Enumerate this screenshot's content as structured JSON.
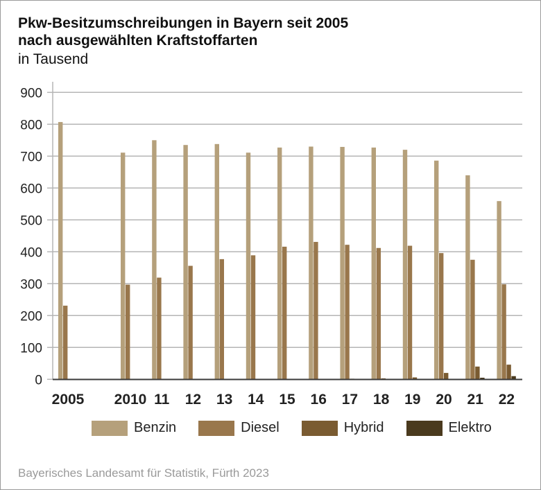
{
  "chart_data": {
    "type": "bar",
    "title": "Pkw-Besitzumschreibungen in Bayern seit 2005",
    "subtitle": "nach ausgewählten Kraftstoffarten",
    "unit": "in Tausend",
    "categories": [
      "2005",
      "2010",
      "11",
      "12",
      "13",
      "14",
      "15",
      "16",
      "17",
      "18",
      "19",
      "20",
      "21",
      "22"
    ],
    "yticks": [
      "0",
      "100",
      "200",
      "300",
      "400",
      "500",
      "600",
      "700",
      "800",
      "900"
    ],
    "ylim": [
      0,
      900
    ],
    "grid": true,
    "legend_position": "bottom",
    "series": [
      {
        "name": "Benzin",
        "color": "#b5a07b",
        "values": [
          807,
          711,
          750,
          735,
          738,
          711,
          727,
          730,
          729,
          727,
          720,
          686,
          640,
          559
        ]
      },
      {
        "name": "Diesel",
        "color": "#99774c",
        "values": [
          231,
          297,
          319,
          356,
          377,
          389,
          416,
          431,
          422,
          412,
          419,
          396,
          375,
          298
        ]
      },
      {
        "name": "Hybrid",
        "color": "#7a5b31",
        "values": [
          0,
          0,
          0,
          0,
          0,
          0,
          0,
          1,
          2,
          3,
          6,
          20,
          40,
          46
        ]
      },
      {
        "name": "Elektro",
        "color": "#4a3a1e",
        "values": [
          0,
          0,
          0,
          0,
          0,
          0,
          0,
          0,
          0,
          0,
          0,
          1,
          5,
          10
        ]
      }
    ]
  },
  "source": "Bayerisches Landesamt für Statistik, Fürth 2023"
}
